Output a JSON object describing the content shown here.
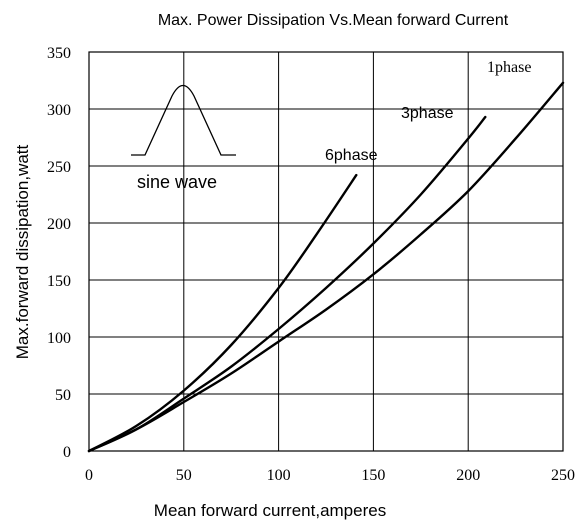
{
  "chart_data": {
    "type": "line",
    "title": "Max. Power Dissipation Vs.Mean forward Current",
    "xlabel": "Mean forward current,amperes",
    "ylabel": "Max.forward dissipation,watt",
    "xlim": [
      0,
      250
    ],
    "ylim": [
      0,
      350
    ],
    "x_ticks": [
      "0",
      "50",
      "100",
      "150",
      "200",
      "250"
    ],
    "y_ticks": [
      "0",
      "50",
      "100",
      "150",
      "200",
      "250",
      "300",
      "350"
    ],
    "grid": true,
    "inset_label": "sine wave",
    "series": [
      {
        "name": "6phase",
        "x": [
          0,
          25,
          50,
          75,
          100,
          120,
          141
        ],
        "y": [
          0,
          22,
          53,
          93,
          143,
          190,
          242
        ]
      },
      {
        "name": "3phase",
        "x": [
          0,
          25,
          50,
          75,
          100,
          125,
          150,
          175,
          200,
          209
        ],
        "y": [
          0,
          19,
          46,
          74,
          107,
          143,
          182,
          225,
          274,
          293
        ]
      },
      {
        "name": "1phase",
        "x": [
          0,
          25,
          50,
          75,
          100,
          125,
          150,
          175,
          200,
          225,
          250
        ],
        "y": [
          0,
          19,
          43,
          68,
          96,
          124,
          155,
          190,
          228,
          274,
          323
        ]
      }
    ]
  }
}
